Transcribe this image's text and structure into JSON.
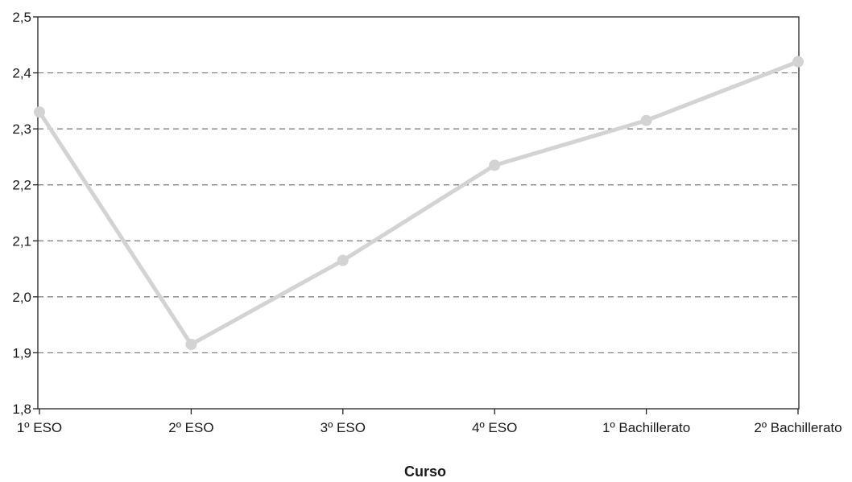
{
  "chart_data": {
    "type": "line",
    "title": "",
    "xlabel": "Curso",
    "ylabel": "",
    "categories": [
      "1º ESO",
      "2º ESO",
      "3º ESO",
      "4º ESO",
      "1º Bachillerato",
      "2º Bachillerato"
    ],
    "series": [
      {
        "values": [
          2.33,
          1.915,
          2.065,
          2.235,
          2.315,
          2.42
        ]
      }
    ],
    "ylim": [
      1.8,
      2.5
    ],
    "yticks": [
      1.8,
      1.9,
      2.0,
      2.1,
      2.2,
      2.3,
      2.4,
      2.5
    ],
    "ytick_labels": [
      "1,8",
      "1,9",
      "2,0",
      "2,1",
      "2,2",
      "2,3",
      "2,4",
      "2,5"
    ],
    "grid": "horizontal dashed",
    "legend": "none",
    "colors": {
      "line": "#d3d3d3",
      "marker": "#d3d3d3",
      "axis": "#222222",
      "grid": "#777777"
    }
  }
}
